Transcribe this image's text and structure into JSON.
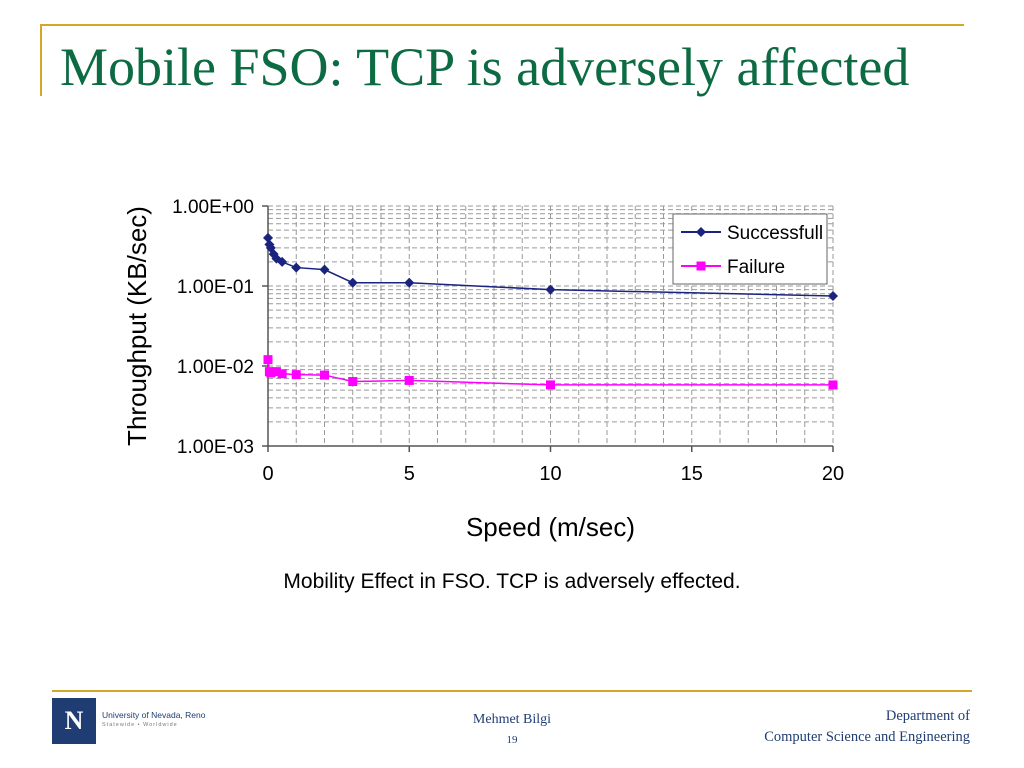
{
  "slide": {
    "title": "Mobile FSO: TCP is adversely affected",
    "caption": "Mobility Effect in FSO. TCP is adversely effected."
  },
  "footer": {
    "author": "Mehmet Bilgi",
    "page_number": "19",
    "department_line1": "Department of",
    "department_line2": "Computer Science and Engineering",
    "logo_letter": "N",
    "logo_name": "University of Nevada, Reno",
    "logo_tagline": "Statewide • Worldwide"
  },
  "colors": {
    "title": "#0d6b43",
    "accent_rule": "#d4a62a",
    "footer_text": "#1f3d72",
    "series_successful": "#1a237e",
    "series_failure": "#ff00ff",
    "plot_background": "#ffffff"
  },
  "chart_data": {
    "type": "line",
    "xlabel": "Speed (m/sec)",
    "ylabel": "Throughput (KB/sec)",
    "xlim": [
      0,
      20
    ],
    "ylim": [
      0.001,
      1
    ],
    "yscale": "log",
    "xticks": [
      "0",
      "5",
      "10",
      "15",
      "20"
    ],
    "yticks": [
      "1.00E-03",
      "1.00E-02",
      "1.00E-01",
      "1.00E+00"
    ],
    "grid": true,
    "legend_position": "top-right",
    "series": [
      {
        "name": "Successfull",
        "marker": "diamond",
        "x": [
          0,
          0.05,
          0.1,
          0.2,
          0.3,
          0.5,
          1,
          2,
          3,
          5,
          10,
          20
        ],
        "y": [
          0.4,
          0.33,
          0.3,
          0.25,
          0.22,
          0.2,
          0.17,
          0.16,
          0.11,
          0.11,
          0.09,
          0.075
        ]
      },
      {
        "name": "Failure",
        "marker": "square",
        "x": [
          0,
          0.05,
          0.1,
          0.3,
          0.5,
          1,
          2,
          3,
          5,
          10,
          20
        ],
        "y": [
          0.012,
          0.0085,
          0.0082,
          0.0085,
          0.008,
          0.0078,
          0.0077,
          0.0064,
          0.0066,
          0.0058,
          0.0058
        ]
      }
    ]
  }
}
